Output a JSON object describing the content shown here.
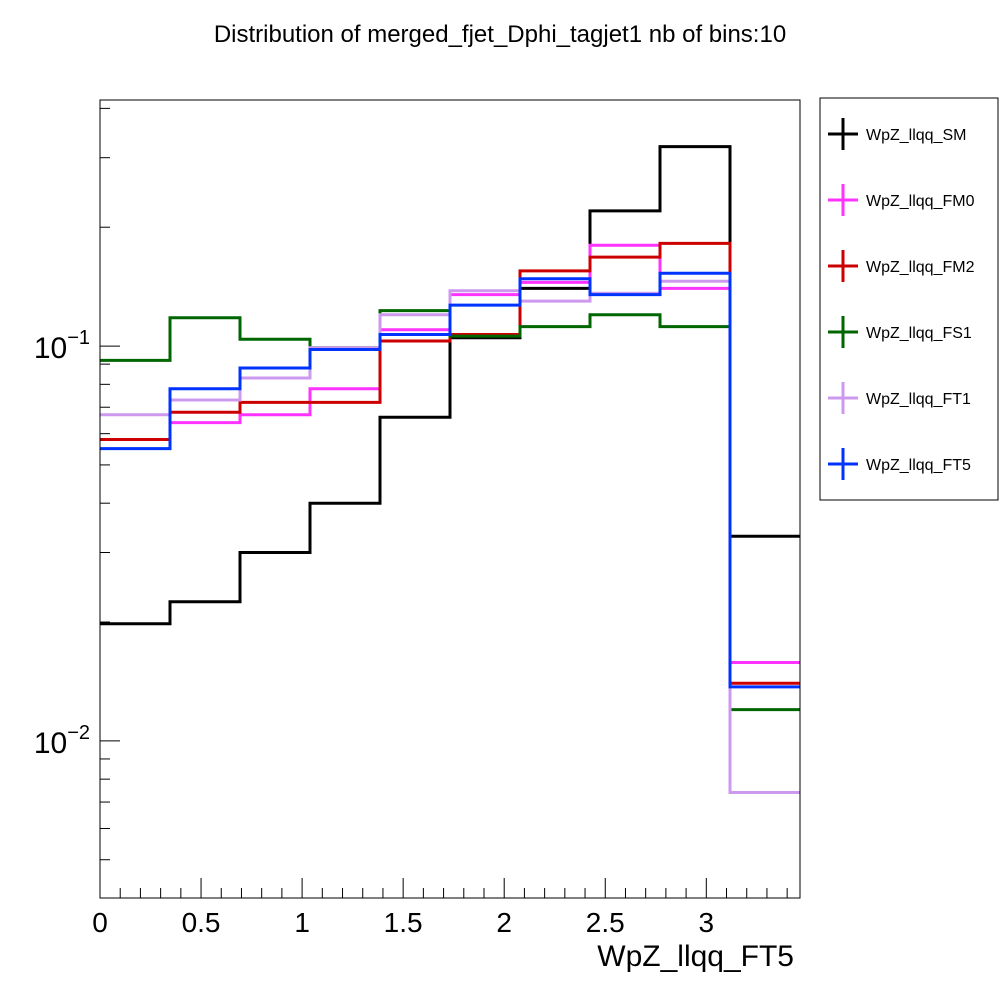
{
  "chart_data": {
    "type": "line",
    "title": "Distribution of merged_fjet_Dphi_tagjet1 nb of bins:10",
    "xlabel": "WpZ_llqq_FT5",
    "ylabel": "",
    "xlim": [
      0,
      3.4636
    ],
    "ylim": [
      0.004,
      0.42
    ],
    "yscale": "log",
    "grid": false,
    "legend_position": "right-outside-top",
    "bin_edges": [
      0,
      0.3464,
      0.6927,
      1.0391,
      1.3854,
      1.7318,
      2.0782,
      2.4245,
      2.7709,
      3.1172,
      3.4636
    ],
    "x_ticks": [
      {
        "value": 0,
        "label": "0"
      },
      {
        "value": 0.5,
        "label": "0.5"
      },
      {
        "value": 1,
        "label": "1"
      },
      {
        "value": 1.5,
        "label": "1.5"
      },
      {
        "value": 2,
        "label": "2"
      },
      {
        "value": 2.5,
        "label": "2.5"
      },
      {
        "value": 3,
        "label": "3"
      }
    ],
    "y_ticks": [
      {
        "value": 0.1,
        "base": "10",
        "exp": "−1"
      },
      {
        "value": 0.01,
        "base": "10",
        "exp": "−2"
      }
    ],
    "series": [
      {
        "name": "WpZ_llqq_SM",
        "color": "#000000",
        "values": [
          0.0198,
          0.0225,
          0.03,
          0.04,
          0.066,
          0.105,
          0.14,
          0.22,
          0.32,
          0.033
        ]
      },
      {
        "name": "WpZ_llqq_FM0",
        "color": "#ff33ff",
        "values": [
          0.058,
          0.064,
          0.067,
          0.078,
          0.11,
          0.135,
          0.145,
          0.18,
          0.14,
          0.0158
        ]
      },
      {
        "name": "WpZ_llqq_FM2",
        "color": "#cc0000",
        "values": [
          0.058,
          0.068,
          0.072,
          0.072,
          0.103,
          0.107,
          0.155,
          0.168,
          0.182,
          0.014
        ]
      },
      {
        "name": "WpZ_llqq_FS1",
        "color": "#006600",
        "values": [
          0.092,
          0.118,
          0.104,
          0.099,
          0.123,
          0.106,
          0.112,
          0.12,
          0.112,
          0.012
        ]
      },
      {
        "name": "WpZ_llqq_FT1",
        "color": "#cc99ee",
        "values": [
          0.067,
          0.073,
          0.083,
          0.099,
          0.12,
          0.138,
          0.13,
          0.136,
          0.146,
          0.0074
        ]
      },
      {
        "name": "WpZ_llqq_FT5",
        "color": "#0033ff",
        "values": [
          0.055,
          0.078,
          0.088,
          0.098,
          0.107,
          0.127,
          0.148,
          0.135,
          0.153,
          0.0137
        ]
      }
    ]
  }
}
